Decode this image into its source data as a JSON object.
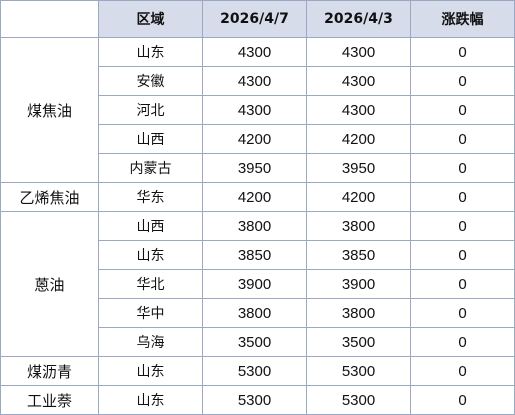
{
  "table": {
    "headers": [
      "",
      "区域",
      "2026/4/7",
      "2026/4/3",
      "涨跌幅"
    ],
    "groups": [
      {
        "product": "煤焦油",
        "rows": [
          {
            "region": "山东",
            "price_new": "4300",
            "price_old": "4300",
            "change": "0"
          },
          {
            "region": "安徽",
            "price_new": "4300",
            "price_old": "4300",
            "change": "0"
          },
          {
            "region": "河北",
            "price_new": "4300",
            "price_old": "4300",
            "change": "0"
          },
          {
            "region": "山西",
            "price_new": "4200",
            "price_old": "4200",
            "change": "0"
          },
          {
            "region": "内蒙古",
            "price_new": "3950",
            "price_old": "3950",
            "change": "0"
          }
        ]
      },
      {
        "product": "乙烯焦油",
        "rows": [
          {
            "region": "华东",
            "price_new": "4200",
            "price_old": "4200",
            "change": "0"
          }
        ]
      },
      {
        "product": "蒽油",
        "rows": [
          {
            "region": "山西",
            "price_new": "3800",
            "price_old": "3800",
            "change": "0"
          },
          {
            "region": "山东",
            "price_new": "3850",
            "price_old": "3850",
            "change": "0"
          },
          {
            "region": "华北",
            "price_new": "3900",
            "price_old": "3900",
            "change": "0"
          },
          {
            "region": "华中",
            "price_new": "3800",
            "price_old": "3800",
            "change": "0"
          },
          {
            "region": "乌海",
            "price_new": "3500",
            "price_old": "3500",
            "change": "0"
          }
        ]
      },
      {
        "product": "煤沥青",
        "rows": [
          {
            "region": "山东",
            "price_new": "5300",
            "price_old": "5300",
            "change": "0"
          }
        ]
      },
      {
        "product": "工业萘",
        "rows": [
          {
            "region": "山东",
            "price_new": "5300",
            "price_old": "5300",
            "change": "0"
          }
        ]
      }
    ]
  }
}
